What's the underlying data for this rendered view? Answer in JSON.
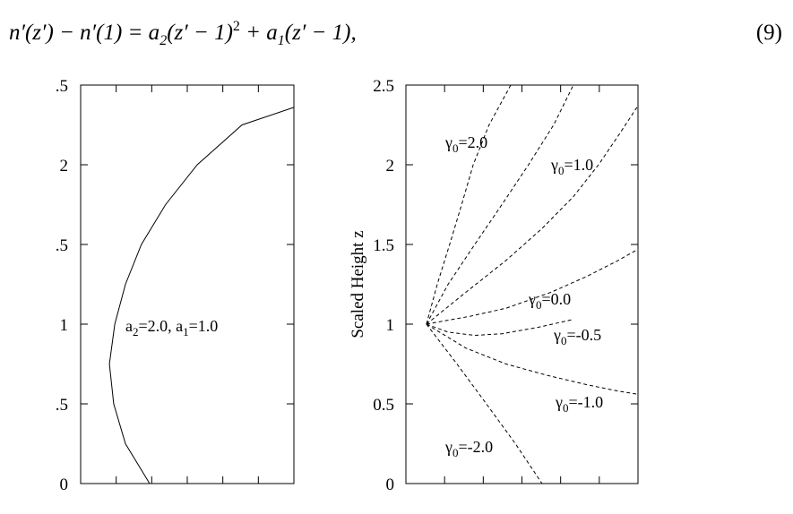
{
  "equation": {
    "parts": [
      "n′(z′) − n′(1) = a",
      "2",
      "(z′ − 1)",
      "2",
      " + a",
      "1",
      "(z′ − 1),"
    ],
    "number": "(9)"
  },
  "chart_data": [
    {
      "type": "line",
      "xlim": [
        0,
        6
      ],
      "xticks": [
        1,
        2,
        3,
        4,
        5
      ],
      "ylim": [
        0,
        2.5
      ],
      "yticks": [
        0,
        {
          "value": 0.5,
          "label": ".5"
        },
        1,
        {
          "value": 1.5,
          "label": ".5"
        },
        2,
        {
          "value": 2.5,
          "label": ".5"
        }
      ],
      "dashed": false,
      "series": [
        {
          "color": "#000000",
          "x": [
            1.94,
            1.26,
            0.93,
            0.81,
            0.96,
            1.26,
            1.71,
            2.39,
            3.28,
            4.54,
            6.0
          ],
          "values": [
            0,
            0.25,
            0.5,
            0.75,
            1,
            1.25,
            1.5,
            1.75,
            2,
            2.25,
            2.36
          ]
        }
      ],
      "annotations": [
        {
          "parts": [
            "a",
            "2",
            "=2.0, a",
            "1",
            "=1.0"
          ]
        }
      ]
    },
    {
      "type": "line",
      "ylabel": "Scaled Height z",
      "xlim": [
        0,
        6
      ],
      "xticks": [
        1,
        2,
        3,
        4,
        5
      ],
      "ylim": [
        0,
        2.5
      ],
      "yticks": [
        0,
        0.5,
        1,
        1.5,
        2,
        2.5
      ],
      "dashed": true,
      "series": [
        {
          "color": "#000000",
          "x": [
            0.53,
            0.81,
            1.13,
            1.44,
            1.74,
            2.15,
            2.71
          ],
          "values": [
            1,
            1.25,
            1.5,
            1.75,
            2,
            2.25,
            2.5
          ]
        },
        {
          "color": "#000000",
          "x": [
            0.53,
            1.09,
            1.78,
            2.48,
            3.17,
            3.82,
            4.33
          ],
          "values": [
            1,
            1.25,
            1.5,
            1.75,
            2,
            2.25,
            2.5
          ]
        },
        {
          "color": "#000000",
          "x": [
            0.53,
            1.55,
            2.59,
            3.52,
            4.33,
            4.98,
            5.54,
            6.0
          ],
          "values": [
            1,
            1.2,
            1.4,
            1.6,
            1.8,
            2,
            2.2,
            2.37
          ]
        },
        {
          "color": "#000000",
          "x": [
            0.53,
            1.67,
            2.59,
            3.75,
            4.68,
            5.49,
            6.0
          ],
          "values": [
            1,
            1.05,
            1.1,
            1.2,
            1.3,
            1.4,
            1.47
          ]
        },
        {
          "color": "#000000",
          "x": [
            0.53,
            1.09,
            1.78,
            2.48,
            3.41,
            4.33
          ],
          "values": [
            1,
            0.95,
            0.93,
            0.94,
            0.98,
            1.03
          ]
        },
        {
          "color": "#000000",
          "x": [
            0.53,
            1.55,
            2.59,
            3.64,
            4.68,
            5.49,
            6.0
          ],
          "values": [
            1,
            0.85,
            0.75,
            0.68,
            0.62,
            0.58,
            0.56
          ]
        },
        {
          "color": "#000000",
          "x": [
            0.53,
            1.32,
            2.08,
            2.83,
            3.52
          ],
          "values": [
            1,
            0.75,
            0.5,
            0.25,
            0
          ]
        }
      ],
      "annotations": [
        {
          "parts": [
            "γ",
            "0",
            "=2.0"
          ]
        },
        {
          "parts": [
            "γ",
            "0",
            "=1.0"
          ]
        },
        {
          "parts": [
            "γ",
            "0",
            "=0.0"
          ]
        },
        {
          "parts": [
            "γ",
            "0",
            "=-0.5"
          ]
        },
        {
          "parts": [
            "γ",
            "0",
            "=-1.0"
          ]
        },
        {
          "parts": [
            "γ",
            "0",
            "=-2.0"
          ]
        }
      ]
    }
  ]
}
